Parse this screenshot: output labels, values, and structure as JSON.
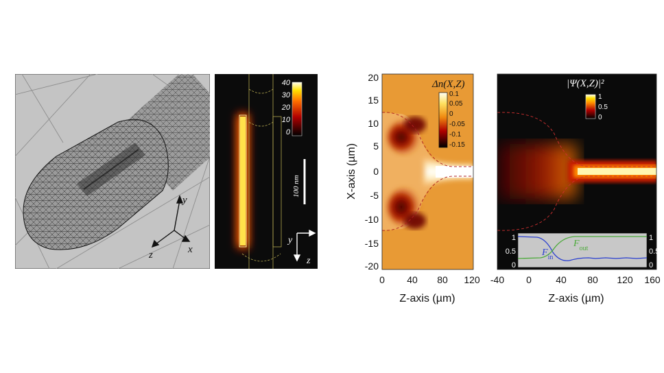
{
  "panel_a": {
    "axes": {
      "y": "y",
      "z": "z",
      "x": "x"
    }
  },
  "panel_b": {
    "colorbar_ticks": [
      "40",
      "30",
      "20",
      "10",
      "0"
    ],
    "scalebar_label": "100 nm",
    "axis_y": "y",
    "axis_z": "z"
  },
  "panel_c": {
    "title": "Δn(X,Z)",
    "colorbar_ticks": [
      "0.1",
      "0.05",
      "0",
      "-0.05",
      "-0.1",
      "-0.15"
    ],
    "y_ticks": [
      "20",
      "15",
      "10",
      "5",
      "0",
      "-5",
      "-10",
      "-15",
      "-20"
    ],
    "x_ticks": [
      "0",
      "40",
      "80",
      "120"
    ],
    "ylabel": "X-axis (µm)",
    "xlabel": "Z-axis (µm)"
  },
  "panel_d": {
    "title": "|Ψ(X,Z)|²",
    "colorbar_ticks": [
      "1",
      "0.5",
      "0"
    ],
    "x_ticks": [
      "-40",
      "0",
      "40",
      "80",
      "120",
      "160"
    ],
    "xlabel": "Z-axis (µm)",
    "inset": {
      "left_ticks": [
        "1",
        "0.5",
        "0"
      ],
      "right_ticks": [
        "1",
        "0.5",
        "0"
      ],
      "label_in": "F",
      "label_in_sub": "in",
      "label_out": "F",
      "label_out_sub": "out",
      "color_in": "#2a3fd0",
      "color_out": "#4caa3a"
    }
  }
}
